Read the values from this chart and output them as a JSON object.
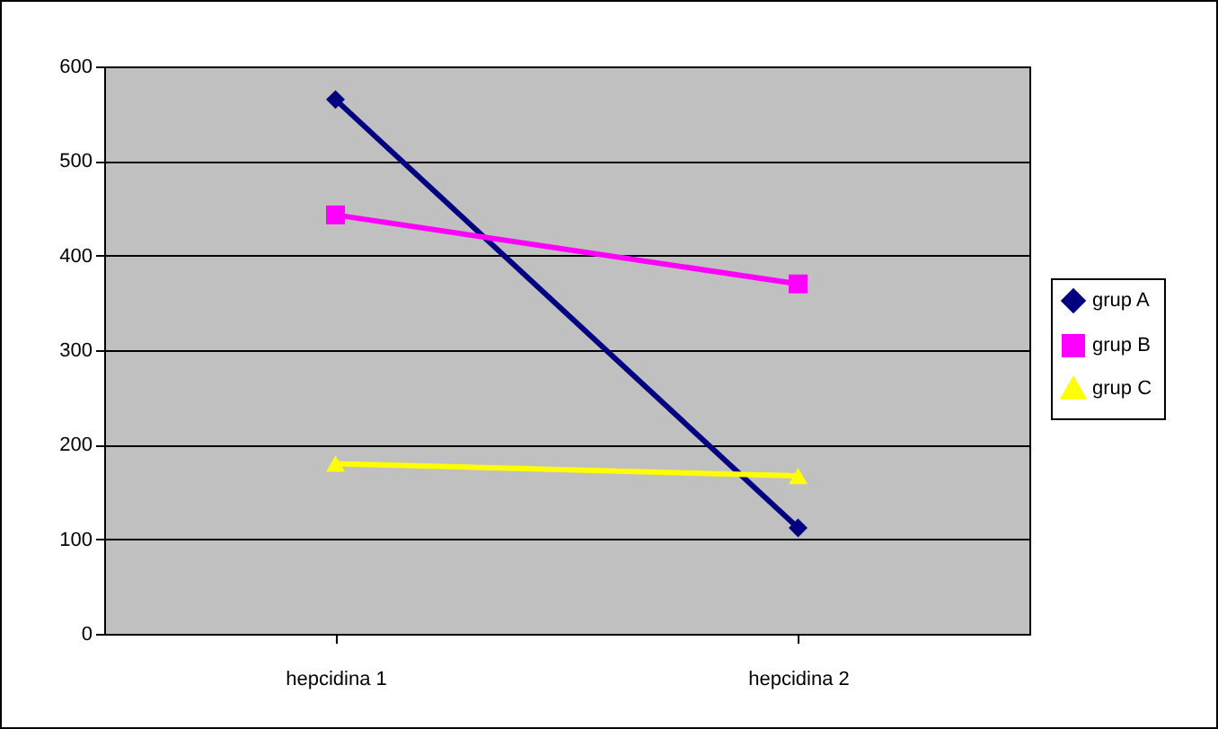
{
  "chart_data": {
    "type": "line",
    "categories": [
      "hepcidina 1",
      "hepcidina 2"
    ],
    "series": [
      {
        "name": "grup A",
        "color": "#000080",
        "values": [
          565,
          112
        ],
        "marker": "diamond"
      },
      {
        "name": "grup B",
        "color": "#ff00ff",
        "values": [
          443,
          370
        ],
        "marker": "square"
      },
      {
        "name": "grup C",
        "color": "#ffff00",
        "values": [
          180,
          167
        ],
        "marker": "triangle"
      }
    ],
    "ylim": [
      0,
      600
    ],
    "yticks": [
      0,
      100,
      200,
      300,
      400,
      500,
      600
    ],
    "grid": "y",
    "legend": "right"
  }
}
